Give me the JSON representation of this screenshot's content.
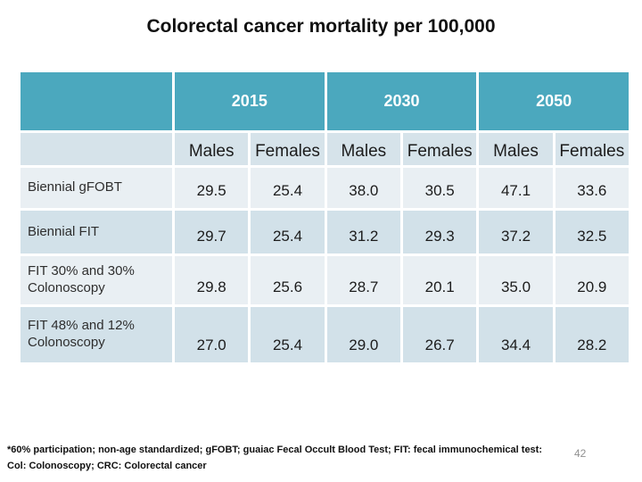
{
  "slide": {
    "title": "Colorectal cancer mortality per 100,000",
    "page_number": "42",
    "footnote_line1": "*60% participation; non-age standardized; gFOBT; guaiac Fecal Occult Blood Test; FIT: fecal immunochemical test:",
    "footnote_line2": "Col: Colonoscopy; CRC: Colorectal cancer"
  },
  "table": {
    "year_groups": [
      "2015",
      "2030",
      "2050"
    ],
    "sub_headers": [
      "Males",
      "Females",
      "Males",
      "Females",
      "Males",
      "Females"
    ],
    "rows": [
      {
        "label": "Biennial gFOBT",
        "values": [
          "29.5",
          "25.4",
          "38.0",
          "30.5",
          "47.1",
          "33.6"
        ]
      },
      {
        "label": "Biennial FIT",
        "values": [
          "29.7",
          "25.4",
          "31.2",
          "29.3",
          "37.2",
          "32.5"
        ]
      },
      {
        "label": "FIT 30% and 30% Colonoscopy",
        "values": [
          "29.8",
          "25.6",
          "28.7",
          "20.1",
          "35.0",
          "20.9"
        ]
      },
      {
        "label": "FIT 48% and 12% Colonoscopy",
        "values": [
          "27.0",
          "25.4",
          "29.0",
          "26.7",
          "34.4",
          "28.2"
        ]
      }
    ]
  },
  "colors": {
    "header_teal": "#4BA8BE",
    "band_light": "#E9EFF3",
    "band_dark": "#D2E1E9",
    "subheader_bg": "#D6E3EA",
    "page_number_gray": "#909090"
  }
}
